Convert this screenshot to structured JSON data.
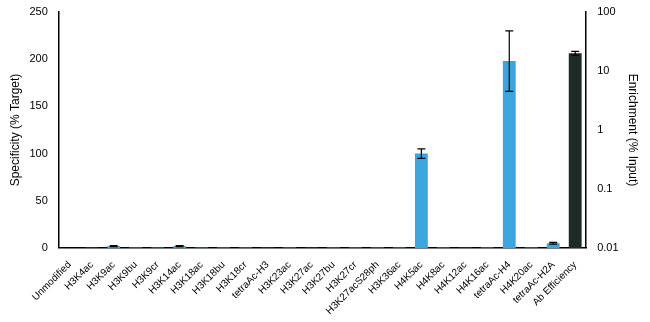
{
  "chart_data": {
    "type": "bar",
    "y_label": "Specificity (% Target)",
    "y2_label": "Enrichment (% Input)",
    "categories": [
      "Unmodified",
      "H3K4ac",
      "H3K9ac",
      "H3K9bu",
      "H3K9cr",
      "H3K14ac",
      "H3K18ac",
      "H3K18bu",
      "H3K18cr",
      "tetraAc-H3",
      "H3K23ac",
      "H3K27ac",
      "H3K27bu",
      "H3K27cr",
      "H3K27acS28ph",
      "H3K36ac",
      "H4K5ac",
      "H4K8ac",
      "H4K12ac",
      "H4K16ac",
      "tetraAc-H4",
      "H4K20ac",
      "tetraAc-H2A",
      "Ab Efficiency"
    ],
    "series": [
      {
        "color": "#3aa6dd",
        "values": [
          0,
          0.3,
          2,
          0.5,
          0.5,
          2,
          0.5,
          0.5,
          0.5,
          0.3,
          0.5,
          0.3,
          0.5,
          0.5,
          0.5,
          0.5,
          100,
          0.5,
          0.3,
          0.5,
          198,
          0.5,
          5,
          null
        ],
        "errors": [
          0,
          0,
          0.5,
          0,
          0,
          0.5,
          0,
          0,
          0,
          0,
          0,
          0,
          0,
          0,
          0,
          0,
          5,
          0,
          0,
          0,
          32,
          0,
          1,
          null
        ]
      },
      {
        "color": "#1e2b25",
        "axis": "y2",
        "values": [
          null,
          null,
          null,
          null,
          null,
          null,
          null,
          null,
          null,
          null,
          null,
          null,
          null,
          null,
          null,
          null,
          null,
          null,
          null,
          null,
          null,
          null,
          null,
          20
        ],
        "errors": [
          null,
          null,
          null,
          null,
          null,
          null,
          null,
          null,
          null,
          null,
          null,
          null,
          null,
          null,
          null,
          null,
          null,
          null,
          null,
          null,
          null,
          null,
          null,
          1.5
        ]
      }
    ],
    "ylim": [
      0,
      250
    ],
    "yticks": [
      0,
      50,
      100,
      150,
      200,
      250
    ],
    "y2lim": [
      0.01,
      100
    ],
    "y2ticks": [
      0.01,
      0.1,
      1,
      10,
      100
    ],
    "log": "y2",
    "grid": false
  }
}
